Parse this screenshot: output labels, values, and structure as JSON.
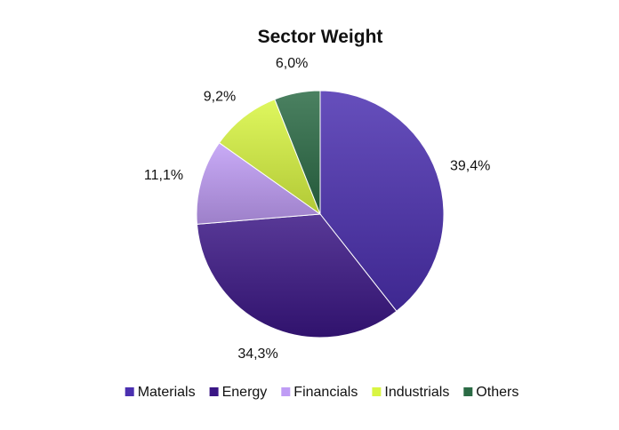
{
  "chart_data": {
    "type": "pie",
    "title": "Sector Weight",
    "categories": [
      "Materials",
      "Energy",
      "Financials",
      "Industrials",
      "Others"
    ],
    "values": [
      39.4,
      34.3,
      11.1,
      9.2,
      6.0
    ],
    "data_labels": [
      "39,4%",
      "34,3%",
      "11,1%",
      "9,2%",
      "6,0%"
    ],
    "start_angle_deg": 0,
    "direction": "clockwise",
    "colors": [
      "#4B30B0",
      "#3A1685",
      "#BF9CF5",
      "#D9F542",
      "#2B6B45"
    ],
    "legend": {
      "position": "bottom",
      "entries": [
        "Materials",
        "Energy",
        "Financials",
        "Industrials",
        "Others"
      ]
    }
  }
}
